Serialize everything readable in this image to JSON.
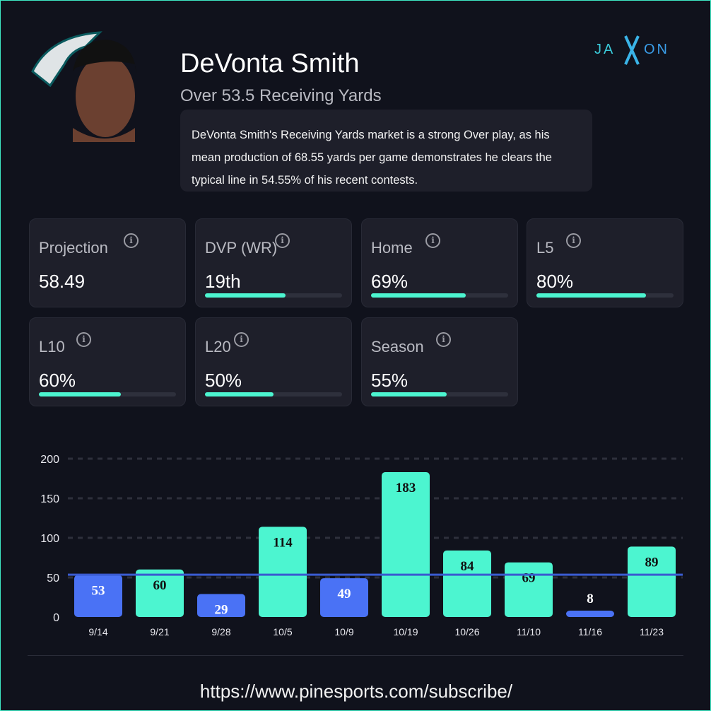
{
  "player": {
    "name": "DeVonta Smith",
    "market": "Over 53.5 Receiving Yards",
    "description": "DeVonta Smith's Receiving Yards market is a strong Over play, as his mean production of 68.55 yards per game demonstrates he clears the typical line in 54.55% of his recent contests."
  },
  "brand": {
    "logo_text": "JAXON"
  },
  "cards": [
    {
      "label": "Projection",
      "value": "58.49",
      "fill_pct": null
    },
    {
      "label": "DVP (WR)",
      "value": "19th",
      "fill_pct": 59
    },
    {
      "label": "Home",
      "value": "69%",
      "fill_pct": 69
    },
    {
      "label": "L5",
      "value": "80%",
      "fill_pct": 80
    },
    {
      "label": "L10",
      "value": "60%",
      "fill_pct": 60
    },
    {
      "label": "L20",
      "value": "50%",
      "fill_pct": 50
    },
    {
      "label": "Season",
      "value": "55%",
      "fill_pct": 55
    }
  ],
  "footer": {
    "url": "https://www.pinesports.com/subscribe/"
  },
  "colors": {
    "over": "#4cf5d0",
    "under": "#4a72f5",
    "line": "#3a5bd0",
    "accent": "#4cf5d0"
  },
  "chart_data": {
    "type": "bar",
    "title": "",
    "xlabel": "",
    "ylabel": "",
    "categories": [
      "9/14",
      "9/21",
      "9/28",
      "10/5",
      "10/9",
      "10/19",
      "10/26",
      "11/10",
      "11/16",
      "11/23"
    ],
    "values": [
      53,
      60,
      29,
      114,
      49,
      183,
      84,
      69,
      8,
      89
    ],
    "line_value": 53.5,
    "ylim": [
      0,
      200
    ],
    "yticks": [
      0,
      50,
      100,
      150,
      200
    ],
    "grid": true
  }
}
